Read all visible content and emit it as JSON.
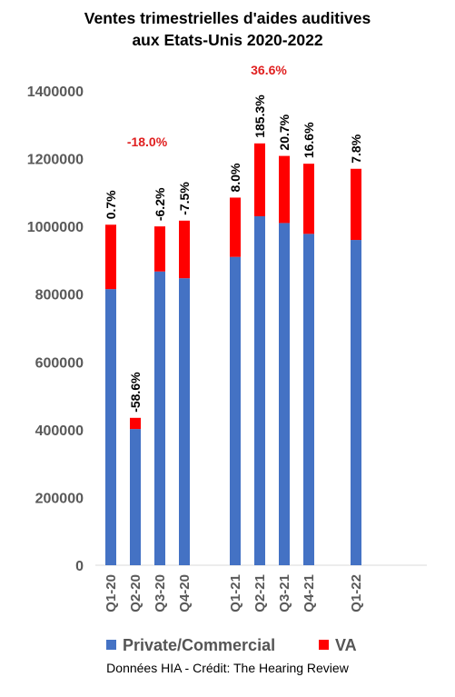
{
  "chart_data": {
    "type": "bar",
    "stacked": true,
    "title_lines": [
      "Ventes trimestrielles d'aides auditives",
      "aux Etats-Unis 2020-2022"
    ],
    "categories": [
      "Q1-20",
      "Q2-20",
      "Q3-20",
      "Q4-20",
      "Q1-21",
      "Q2-21",
      "Q3-21",
      "Q4-21",
      "Q1-22"
    ],
    "series": [
      {
        "name": "Private/Commercial",
        "color": "#4472C4",
        "values": [
          815000,
          402000,
          867000,
          847000,
          910000,
          1030000,
          1010000,
          978000,
          960000
        ]
      },
      {
        "name": "VA",
        "color": "#FF0000",
        "values": [
          190000,
          33000,
          133000,
          170000,
          175000,
          215000,
          198000,
          207000,
          210000
        ]
      }
    ],
    "bar_labels": [
      "0.7%",
      "-58.6%",
      "-6.2%",
      "-7.5%",
      "8.0%",
      "185.3%",
      "20.7%",
      "16.6%",
      "7.8%"
    ],
    "annotations": [
      {
        "text": "-18.0%",
        "color": "#E02020"
      },
      {
        "text": "36.6%",
        "color": "#E02020"
      }
    ],
    "ylim": [
      0,
      1400000
    ],
    "yticks": [
      0,
      200000,
      400000,
      600000,
      800000,
      1000000,
      1200000,
      1400000
    ],
    "xlabel": "",
    "ylabel": "",
    "grid": false,
    "legend": "bottom",
    "credit": "Données HIA - Crédit: The Hearing Review"
  }
}
